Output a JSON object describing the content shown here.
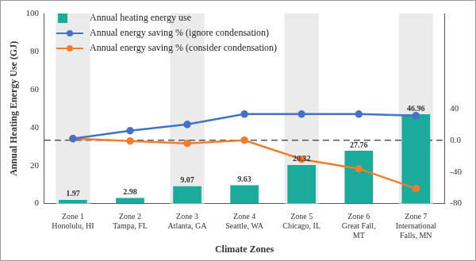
{
  "chart_data": {
    "type": "bar",
    "x_label": "Climate Zones",
    "y_label": "Annual Heating Energy Use (GJ)",
    "categories": [
      [
        "Zone 1",
        "Honolulu, HI"
      ],
      [
        "Zone 2",
        "Tampa, FL"
      ],
      [
        "Zone 3",
        "Atlanta, GA"
      ],
      [
        "Zone 4",
        "Seattle, WA"
      ],
      [
        "Zone 5",
        "Chicago, IL"
      ],
      [
        "Zone 6",
        "Great Fall,",
        "MT"
      ],
      [
        "Zone 7",
        "International",
        "Falls, MN"
      ]
    ],
    "series": [
      {
        "name": "Annual heating energy use",
        "type": "bar",
        "color": "#1aab9b",
        "data_labels": true,
        "values": [
          1.97,
          2.98,
          9.07,
          9.63,
          20.32,
          27.76,
          46.96
        ]
      },
      {
        "name": "Annual energy saving % (ignore condensation)",
        "type": "line",
        "axis": "y2",
        "color": "#4472c4",
        "marker": "circle",
        "values": [
          2,
          12,
          20,
          33,
          33,
          33,
          31
        ]
      },
      {
        "name": "Annual energy saving % (consider condensation)",
        "type": "line",
        "axis": "y2",
        "color": "#ed7d31",
        "marker": "circle",
        "values": [
          2,
          -1,
          -4,
          0,
          -24,
          -36,
          -61
        ]
      }
    ],
    "ylim": [
      0,
      100
    ],
    "yticks": [
      0,
      20,
      40,
      60,
      80,
      100
    ],
    "y2lim": [
      -80,
      160
    ],
    "y2ticks": [
      -80,
      -40,
      {
        "value": 0,
        "label": "0.0"
      },
      40
    ],
    "reference_line": {
      "axis": "y2",
      "value": 0,
      "line_style": "dashed"
    },
    "grid": false,
    "legend": "upper left"
  }
}
